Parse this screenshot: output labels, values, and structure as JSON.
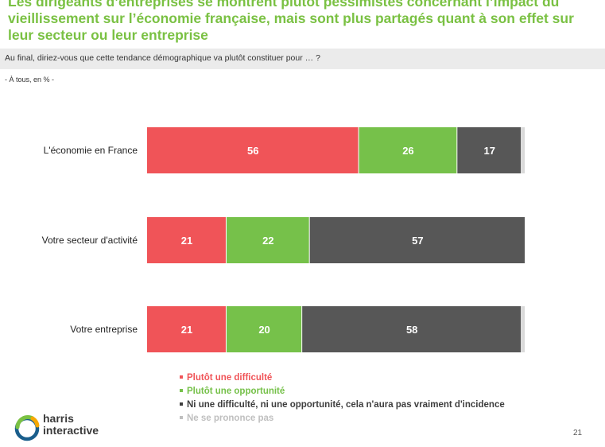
{
  "header": {
    "title": "Les dirigeants d’entreprises se montrent plutôt pessimistes concernant l’impact du vieillissement sur l’économie française, mais sont plus partagés quant à son effet sur leur secteur ou leur entreprise",
    "question": "Au final, diriez-vous que cette tendance démographique va plutôt constituer pour … ?",
    "base": "- À tous, en % -"
  },
  "chart_data": {
    "type": "bar",
    "orientation": "horizontal",
    "stacked": true,
    "categories": [
      "L'économie en France",
      "Votre secteur d'activité",
      "Votre entreprise"
    ],
    "series": [
      {
        "name": "Plutôt une difficulté",
        "values": [
          56,
          21,
          21
        ],
        "color": "#f05458"
      },
      {
        "name": "Plutôt une opportunité",
        "values": [
          26,
          22,
          20
        ],
        "color": "#76c14a"
      },
      {
        "name": "Ni une difficulté, ni une opportunité, cela n'aura pas vraiment d'incidence",
        "values": [
          17,
          57,
          58
        ],
        "color": "#575757"
      },
      {
        "name": "Ne se prononce pas",
        "values": [
          1,
          0,
          1
        ],
        "color": "#d9d9d9"
      }
    ],
    "data_labels": [
      [
        "56",
        "26",
        "17",
        ""
      ],
      [
        "21",
        "22",
        "57",
        ""
      ],
      [
        "21",
        "20",
        "58",
        ""
      ]
    ],
    "xlim": [
      0,
      100
    ],
    "grid": false,
    "legend_position": "bottom"
  },
  "legend": {
    "items": [
      {
        "label": "Plutôt une difficulté",
        "color": "#f05458"
      },
      {
        "label": "Plutôt une opportunité",
        "color": "#76c14a"
      },
      {
        "label": "Ni une difficulté, ni une opportunité, cela n'aura pas vraiment d'incidence",
        "color": "#3d3d3d"
      },
      {
        "label": "Ne se prononce pas",
        "color": "#bfbfbf"
      }
    ]
  },
  "logo": {
    "line1": "harris",
    "line2": "interactive",
    "colors": [
      "#7ac143",
      "#f6a800",
      "#1a5e8c"
    ]
  },
  "footer": {
    "page_number": "21"
  }
}
